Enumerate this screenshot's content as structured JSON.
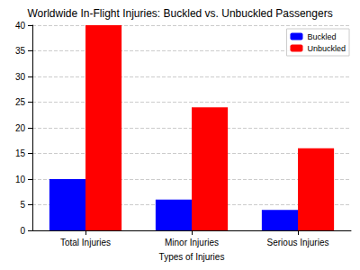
{
  "chart_data": {
    "type": "bar",
    "title": "Worldwide In-Flight Injuries: Buckled vs. Unbuckled Passengers",
    "x_label": "Types of Injuries",
    "categories": [
      "Total Injuries",
      "Minor Injuries",
      "Serious Injuries"
    ],
    "series": [
      {
        "name": "Buckled",
        "color": "#0000ff",
        "values": [
          10,
          6,
          4
        ]
      },
      {
        "name": "Unbuckled",
        "color": "#ff0000",
        "values": [
          40,
          24,
          16
        ]
      }
    ],
    "ylim": [
      0,
      40
    ],
    "yticks": [
      0,
      5,
      10,
      15,
      20,
      25,
      30,
      35,
      40
    ],
    "grid": true,
    "legend": "upper right"
  }
}
